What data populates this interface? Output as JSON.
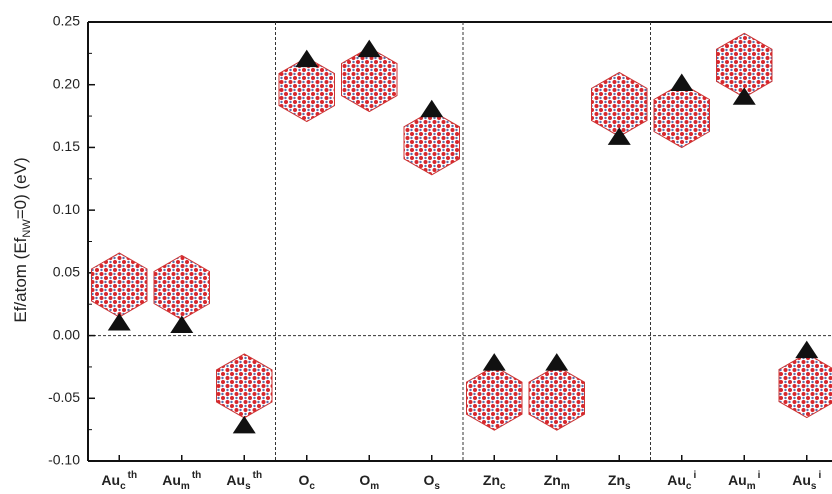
{
  "chart_data": {
    "type": "scatter",
    "y_label": {
      "text": "Ef/atom (Ef",
      "sub": "NW",
      "tail": "=0) (eV)"
    },
    "categories": [
      {
        "base": "Au",
        "sub": "c",
        "sup": "th"
      },
      {
        "base": "Au",
        "sub": "m",
        "sup": "th"
      },
      {
        "base": "Au",
        "sub": "s",
        "sup": "th"
      },
      {
        "base": "O",
        "sub": "c"
      },
      {
        "base": "O",
        "sub": "m"
      },
      {
        "base": "O",
        "sub": "s"
      },
      {
        "base": "Zn",
        "sub": "c"
      },
      {
        "base": "Zn",
        "sub": "m"
      },
      {
        "base": "Zn",
        "sub": "s"
      },
      {
        "base": "Au",
        "sub": "c",
        "sup": "i"
      },
      {
        "base": "Au",
        "sub": "m",
        "sup": "i"
      },
      {
        "base": "Au",
        "sub": "s",
        "sup": "i"
      }
    ],
    "values": [
      0.01,
      0.008,
      -0.072,
      0.22,
      0.228,
      0.18,
      -0.022,
      -0.022,
      0.158,
      0.201,
      0.19,
      -0.012
    ],
    "color": "#111111",
    "ylim": [
      -0.1,
      0.25
    ],
    "yticks": [
      {
        "value": -0.1,
        "label": "-0.10"
      },
      -0.05,
      {
        "value": 0,
        "label": "0.00"
      },
      0.05,
      {
        "value": 0.1,
        "label": "0.10"
      },
      0.15,
      {
        "value": 0.2,
        "label": "0.20"
      },
      0.25
    ]
  }
}
